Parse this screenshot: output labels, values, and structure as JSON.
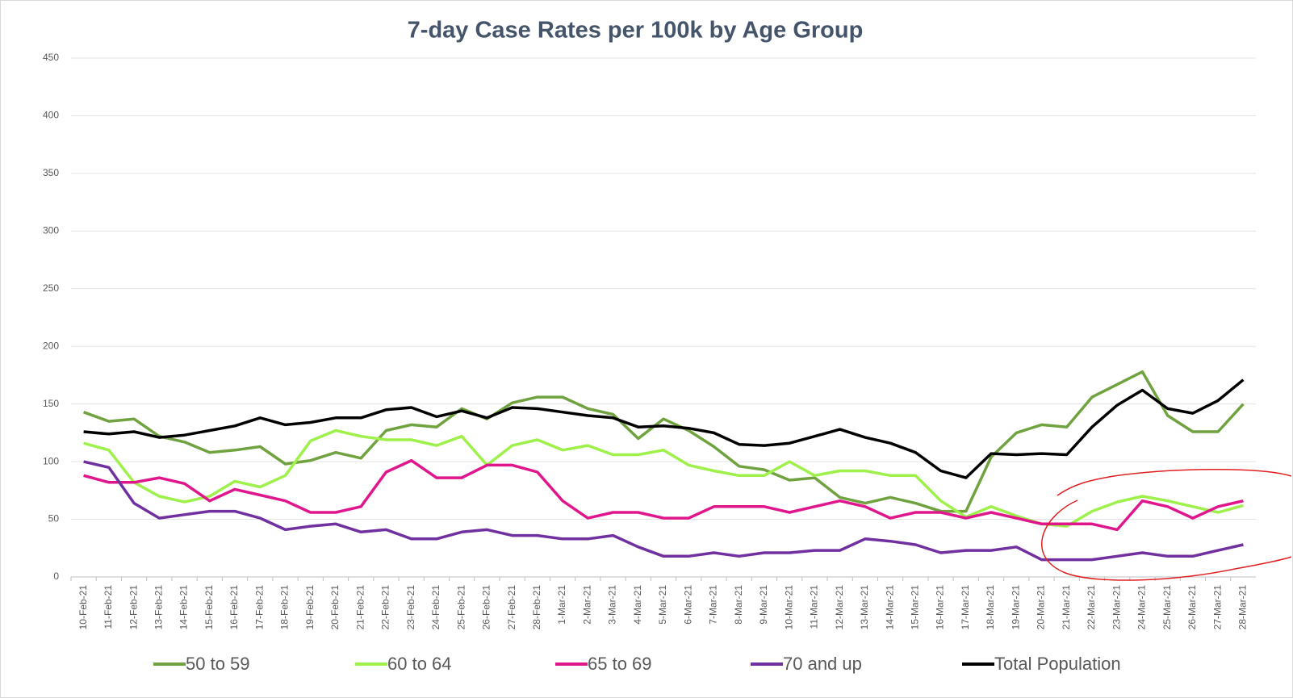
{
  "chart_data": {
    "type": "line",
    "title": "7-day Case Rates per 100k by Age Group",
    "categories": [
      "10-Feb-21",
      "11-Feb-21",
      "12-Feb-21",
      "13-Feb-21",
      "14-Feb-21",
      "15-Feb-21",
      "16-Feb-21",
      "17-Feb-21",
      "18-Feb-21",
      "19-Feb-21",
      "20-Feb-21",
      "21-Feb-21",
      "22-Feb-21",
      "23-Feb-21",
      "24-Feb-21",
      "25-Feb-21",
      "26-Feb-21",
      "27-Feb-21",
      "28-Feb-21",
      "1-Mar-21",
      "2-Mar-21",
      "3-Mar-21",
      "4-Mar-21",
      "5-Mar-21",
      "6-Mar-21",
      "7-Mar-21",
      "8-Mar-21",
      "9-Mar-21",
      "10-Mar-21",
      "11-Mar-21",
      "12-Mar-21",
      "13-Mar-21",
      "14-Mar-21",
      "15-Mar-21",
      "16-Mar-21",
      "17-Mar-21",
      "18-Mar-21",
      "19-Mar-21",
      "20-Mar-21",
      "21-Mar-21",
      "22-Mar-21",
      "23-Mar-21",
      "24-Mar-21",
      "25-Mar-21",
      "26-Mar-21",
      "27-Mar-21",
      "28-Mar-21"
    ],
    "series": [
      {
        "name": "50 to 59",
        "color": "#70a23f",
        "values": [
          143,
          135,
          137,
          122,
          117,
          108,
          110,
          113,
          98,
          101,
          108,
          103,
          127,
          132,
          130,
          146,
          137,
          151,
          156,
          156,
          146,
          141,
          120,
          137,
          127,
          113,
          96,
          93,
          84,
          86,
          69,
          64,
          69,
          64,
          57,
          57,
          104,
          125,
          132,
          130,
          156,
          167,
          178,
          140,
          126,
          126,
          150
        ]
      },
      {
        "name": "60 to 64",
        "color": "#9ef04a",
        "values": [
          116,
          110,
          82,
          70,
          65,
          70,
          83,
          78,
          88,
          118,
          127,
          122,
          119,
          119,
          114,
          122,
          97,
          114,
          119,
          110,
          114,
          106,
          106,
          110,
          97,
          92,
          88,
          88,
          100,
          88,
          92,
          92,
          88,
          88,
          66,
          52,
          61,
          53,
          46,
          44,
          57,
          65,
          70,
          66,
          61,
          56,
          62
        ]
      },
      {
        "name": "65 to 69",
        "color": "#e0168c",
        "values": [
          88,
          82,
          82,
          86,
          81,
          66,
          76,
          71,
          66,
          56,
          56,
          61,
          91,
          101,
          86,
          86,
          97,
          97,
          91,
          66,
          51,
          56,
          56,
          51,
          51,
          61,
          61,
          61,
          56,
          61,
          66,
          61,
          51,
          56,
          56,
          51,
          56,
          51,
          46,
          46,
          46,
          41,
          66,
          61,
          51,
          61,
          66
        ]
      },
      {
        "name": "70 and up",
        "color": "#7030a0",
        "values": [
          100,
          95,
          64,
          51,
          54,
          57,
          57,
          51,
          41,
          44,
          46,
          39,
          41,
          33,
          33,
          39,
          41,
          36,
          36,
          33,
          33,
          36,
          26,
          18,
          18,
          21,
          18,
          21,
          21,
          23,
          23,
          33,
          31,
          28,
          21,
          23,
          23,
          26,
          15,
          15,
          15,
          18,
          21,
          18,
          18,
          23,
          28
        ]
      },
      {
        "name": "Total Population",
        "color": "#000000",
        "values": [
          126,
          124,
          126,
          121,
          123,
          127,
          131,
          138,
          132,
          134,
          138,
          138,
          145,
          147,
          139,
          144,
          138,
          147,
          146,
          143,
          140,
          138,
          130,
          131,
          129,
          125,
          115,
          114,
          116,
          122,
          128,
          121,
          116,
          108,
          92,
          86,
          107,
          106,
          107,
          106,
          130,
          149,
          162,
          146,
          142,
          153,
          171
        ]
      }
    ],
    "ylim": [
      0,
      450
    ],
    "yticks": [
      0,
      50,
      100,
      150,
      200,
      250,
      300,
      350,
      400,
      450
    ],
    "grid": true
  }
}
